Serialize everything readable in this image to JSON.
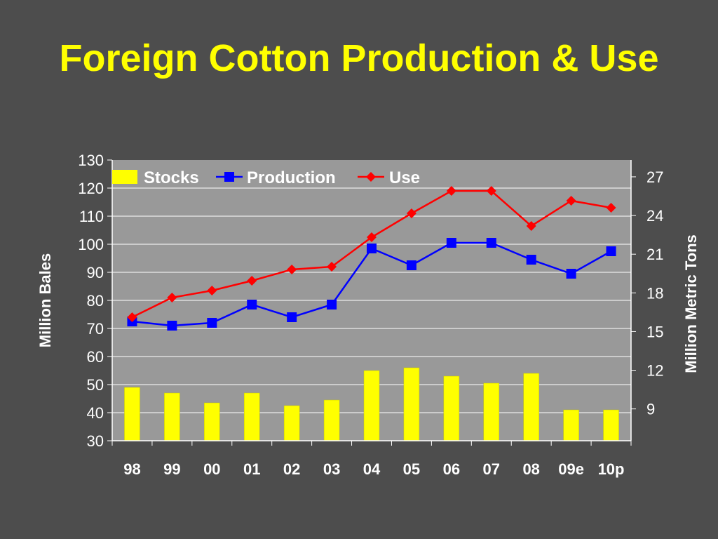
{
  "title": "Foreign Cotton Production & Use",
  "colors": {
    "background": "#4d4d4d",
    "plot_area": "#999999",
    "title": "#ffff00",
    "stocks": "#ffff00",
    "production": "#0000ff",
    "use": "#ff0000",
    "text": "#ffffff"
  },
  "chart_data": {
    "type": "bar+line",
    "categories": [
      "98",
      "99",
      "00",
      "01",
      "02",
      "03",
      "04",
      "05",
      "06",
      "07",
      "08",
      "09e",
      "10p"
    ],
    "series": [
      {
        "name": "Stocks",
        "type": "bar",
        "values": [
          49,
          47,
          43.5,
          47,
          42.5,
          44.5,
          55,
          56,
          53,
          50.5,
          54,
          41,
          41
        ]
      },
      {
        "name": "Production",
        "type": "line",
        "marker": "square",
        "values": [
          72.5,
          71,
          72,
          78.5,
          74,
          78.5,
          98.5,
          92.5,
          100.5,
          100.5,
          94.5,
          89.5,
          97.5
        ]
      },
      {
        "name": "Use",
        "type": "line",
        "marker": "diamond",
        "values": [
          74,
          81,
          83.5,
          87,
          91,
          92,
          102.5,
          111,
          119,
          119,
          106.5,
          115.5,
          113
        ]
      }
    ],
    "ylabel": "Million Bales",
    "ylim": [
      30,
      130
    ],
    "yticks": [
      30,
      40,
      50,
      60,
      70,
      80,
      90,
      100,
      110,
      120,
      130
    ],
    "y2label": "Million Metric Tons",
    "y2ticks": [
      9,
      12,
      15,
      18,
      21,
      24,
      27
    ],
    "grid": true,
    "legend": "top-left"
  }
}
